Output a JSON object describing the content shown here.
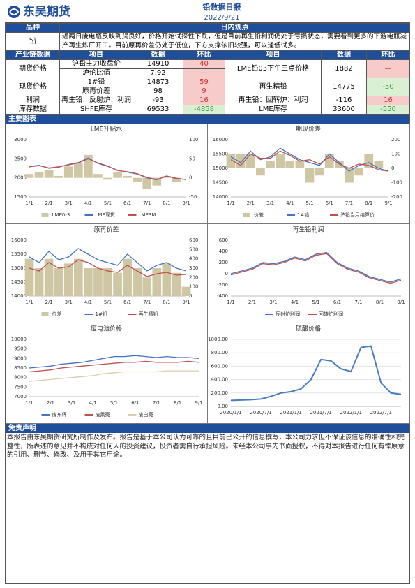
{
  "header": {
    "logo": "东吴期货",
    "title": "铅数据日报",
    "date": "2022/9/21"
  },
  "view": {
    "col1": "品种",
    "col2": "日内观点",
    "variety": "铅",
    "text": "近两日废电瓶反映到货良好，价格开始试探性下跌，但是目前再生铅利润仍处于亏损状态，需要看到更多的下游电瓶减产再生炼厂开工。目前原再价差仍处于低位，下方支撑依旧较强，可以逢低试多。"
  },
  "table": {
    "header": [
      "产业链数据",
      "项目",
      "数据",
      "环比",
      "项目",
      "数据",
      "环比"
    ],
    "groups": [
      "期货价格",
      "现货价格",
      "利润",
      "库存数据"
    ],
    "left": [
      {
        "item": "沪铅主力收盘价",
        "value": 14910,
        "change": 40
      },
      {
        "item": "沪伦比值",
        "value": 7.92,
        "change": "—"
      },
      {
        "item": "1#铅",
        "value": 14873,
        "change": 59
      },
      {
        "item": "原再价差",
        "value": 98,
        "change": 9
      },
      {
        "item": "再生铅：反射炉：利润",
        "value": -93,
        "change": 16
      },
      {
        "item": "SHFE库存",
        "value": 69533,
        "change": -4858
      }
    ],
    "right": [
      {
        "item": "LME铅03下午三点价格",
        "value": 1882,
        "change": "—"
      },
      {
        "item": "再生精铅",
        "value": 14775,
        "change": -50
      },
      {
        "item": "再生铅：回转炉：利润",
        "value": -116,
        "change": 16
      },
      {
        "item": "LME库存",
        "value": 33600,
        "change": -550
      }
    ]
  },
  "section_charts": "主要图表",
  "charts": [
    {
      "type": "line",
      "title": "LME升贴水",
      "categories": [
        "1/1",
        null,
        "2/1",
        null,
        "3/1",
        null,
        "4/1",
        null,
        "5/1",
        null,
        "6/1",
        null,
        "7/1",
        null,
        "8/1",
        null,
        "9/1"
      ],
      "ylim": [
        1500,
        3000
      ],
      "yticks": [
        1500,
        2000,
        2500,
        3000
      ],
      "y2lim": [
        -50,
        100
      ],
      "y2ticks": [
        -50,
        0,
        50,
        100
      ],
      "series": [
        {
          "name": "LME0-3",
          "type": "bar",
          "axis": "y2",
          "color": "#cfc6a3",
          "values": [
            10,
            15,
            20,
            5,
            30,
            40,
            60,
            10,
            -5,
            15,
            5,
            -10,
            -30,
            -20,
            5,
            -10,
            0
          ]
        },
        {
          "name": "LME现货",
          "type": "line",
          "color": "#4472c4",
          "values": [
            2300,
            2330,
            2250,
            2280,
            2350,
            2400,
            2520,
            2380,
            2300,
            2200,
            2150,
            2100,
            2000,
            1950,
            2050,
            1980,
            1960
          ]
        },
        {
          "name": "LME3M",
          "type": "line",
          "color": "#c0504d",
          "values": [
            2290,
            2320,
            2260,
            2290,
            2340,
            2390,
            2500,
            2390,
            2310,
            2190,
            2160,
            2110,
            2010,
            1960,
            2040,
            1990,
            1950
          ]
        }
      ]
    },
    {
      "type": "line",
      "title": "期现价差",
      "categories": [
        "1/1",
        null,
        "2/1",
        null,
        "3/1",
        null,
        "4/1",
        null,
        "5/1",
        null,
        "6/1",
        null,
        "7/1",
        null,
        "8/1",
        null,
        "9/1"
      ],
      "ylim": [
        14000,
        16000
      ],
      "yticks": [
        14000,
        14500,
        15000,
        15500,
        16000
      ],
      "y2lim": [
        -200,
        200
      ],
      "y2ticks": [
        -200,
        -100,
        0,
        100,
        200
      ],
      "series": [
        {
          "name": "价差",
          "type": "bar",
          "axis": "y2",
          "color": "#cfc6a3",
          "values": [
            100,
            100,
            100,
            -50,
            50,
            100,
            50,
            50,
            -100,
            -50,
            100,
            50,
            -100,
            -50,
            100,
            50,
            0
          ]
        },
        {
          "name": "1#铅",
          "type": "line",
          "color": "#4472c4",
          "values": [
            15400,
            15200,
            15600,
            15300,
            15400,
            15700,
            15500,
            15300,
            15200,
            15100,
            15500,
            15200,
            14900,
            15100,
            15200,
            15000,
            14900
          ]
        },
        {
          "name": "沪铅当月结算价",
          "type": "line",
          "color": "#c0504d",
          "values": [
            15300,
            15100,
            15500,
            15350,
            15350,
            15600,
            15450,
            15250,
            15300,
            15150,
            15400,
            15150,
            15000,
            15150,
            15100,
            14950,
            14900
          ]
        }
      ]
    },
    {
      "type": "line",
      "title": "原再价差",
      "categories": [
        "1/1",
        null,
        "2/1",
        null,
        "3/1",
        null,
        "4/1",
        null,
        "5/1",
        null,
        "6/1",
        null,
        "7/1",
        null,
        "8/1",
        null,
        "9/1"
      ],
      "ylim": [
        14000,
        16000
      ],
      "yticks": [
        14000,
        14500,
        15000,
        15500,
        16000
      ],
      "y2lim": [
        0,
        600
      ],
      "y2ticks": [
        0,
        100,
        200,
        300,
        400,
        500,
        600
      ],
      "series": [
        {
          "name": "价差",
          "type": "bar",
          "axis": "y2",
          "color": "#cfc6a3",
          "values": [
            400,
            300,
            400,
            300,
            350,
            400,
            300,
            300,
            300,
            250,
            400,
            300,
            200,
            300,
            350,
            250,
            100
          ]
        },
        {
          "name": "1#铅",
          "type": "line",
          "color": "#4472c4",
          "values": [
            15400,
            15200,
            15600,
            15300,
            15400,
            15700,
            15500,
            15300,
            15200,
            15100,
            15500,
            15200,
            14900,
            15100,
            15200,
            15000,
            14900
          ]
        },
        {
          "name": "再生精铅",
          "type": "line",
          "color": "#c0504d",
          "values": [
            15000,
            14900,
            15200,
            15000,
            15050,
            15300,
            15200,
            15000,
            14900,
            14850,
            15100,
            14900,
            14700,
            14800,
            14850,
            14750,
            14780
          ]
        }
      ]
    },
    {
      "type": "line",
      "title": "再生铅利润",
      "categories": [
        "1/1",
        null,
        "2/1",
        null,
        "3/1",
        null,
        "4/1",
        null,
        "5/1",
        null,
        "6/1",
        null,
        "7/1",
        null,
        "8/1",
        null,
        "9/1"
      ],
      "ylim": [
        -400,
        600
      ],
      "yticks": [
        -400,
        -200,
        0,
        200,
        400,
        600
      ],
      "series": [
        {
          "name": "反射炉利润",
          "type": "line",
          "color": "#4472c4",
          "values": [
            0,
            50,
            100,
            200,
            180,
            220,
            300,
            250,
            350,
            380,
            200,
            100,
            50,
            -50,
            -100,
            -150,
            -93
          ]
        },
        {
          "name": "回转炉利润",
          "type": "line",
          "color": "#c0504d",
          "values": [
            -20,
            30,
            80,
            180,
            160,
            200,
            280,
            230,
            330,
            360,
            180,
            80,
            30,
            -70,
            -120,
            -170,
            -116
          ]
        }
      ]
    },
    {
      "type": "line",
      "title": "废电池价格",
      "categories": [
        "1/1",
        null,
        "2/1",
        null,
        "3/1",
        null,
        "4/1",
        null,
        "5/1",
        null,
        "6/1",
        null,
        "7/1",
        null,
        "8/1",
        null,
        "9/1"
      ],
      "ylim": [
        7000,
        10000
      ],
      "yticks": [
        7000,
        7500,
        8000,
        8500,
        9000,
        9500,
        10000
      ],
      "series": [
        {
          "name": "废东辉",
          "type": "line",
          "color": "#4472c4",
          "values": [
            8500,
            8550,
            8600,
            8700,
            8750,
            8800,
            8900,
            9000,
            9100,
            9100,
            9150,
            9100,
            9050,
            9100,
            9050,
            9050,
            9000
          ]
        },
        {
          "name": "废黑壳",
          "type": "line",
          "color": "#c0504d",
          "values": [
            8300,
            8350,
            8400,
            8500,
            8550,
            8600,
            8650,
            8700,
            8750,
            8800,
            8800,
            8850,
            8800,
            8800,
            8800,
            8850,
            8800
          ]
        },
        {
          "name": "废白壳",
          "type": "line",
          "color": "#d8cfae",
          "values": [
            7800,
            7850,
            7900,
            7950,
            8000,
            8050,
            8100,
            8200,
            8250,
            8300,
            8300,
            8300,
            8300,
            8350,
            8350,
            8350,
            8350
          ]
        }
      ]
    },
    {
      "type": "line",
      "title": "硫酸价格",
      "grid": true,
      "categories": [
        "2020/1/1",
        null,
        null,
        "2020/7/1",
        null,
        null,
        "2021/1/1",
        null,
        null,
        "2021/7/1",
        null,
        null,
        "2022/1/1",
        null,
        null,
        "2022/7/1",
        null,
        null
      ],
      "ylim": [
        0,
        1000
      ],
      "yticks": [
        {
          "value": 0,
          "label": "0.00"
        },
        {
          "value": 200,
          "label": "200.00"
        },
        {
          "value": 400,
          "label": "400.00"
        },
        {
          "value": 600,
          "label": "600.00"
        },
        {
          "value": 800,
          "label": "800.00"
        },
        {
          "value": 1000,
          "label": "1000.00"
        }
      ],
      "series": [
        {
          "type": "line",
          "color": "#4a7cc4",
          "values": [
            90,
            95,
            100,
            110,
            150,
            200,
            220,
            260,
            400,
            700,
            680,
            560,
            520,
            880,
            900,
            350,
            200,
            180
          ]
        }
      ]
    }
  ],
  "disclaimer": {
    "title": "免责声明",
    "text": "本报告由东吴期货研究所制作及发布。报告是基于本公司认为可靠的且目前已公开的信息撰写，本公司力求但不保证该信息的准确性和完整性，所表述的意见并不构成对任何人的投资建议，投资者需自行承担风险。未经本公司事先书面授权，不得对本报告进行任何有悖原意的引用、删节、修改、及用于其它用途。"
  }
}
